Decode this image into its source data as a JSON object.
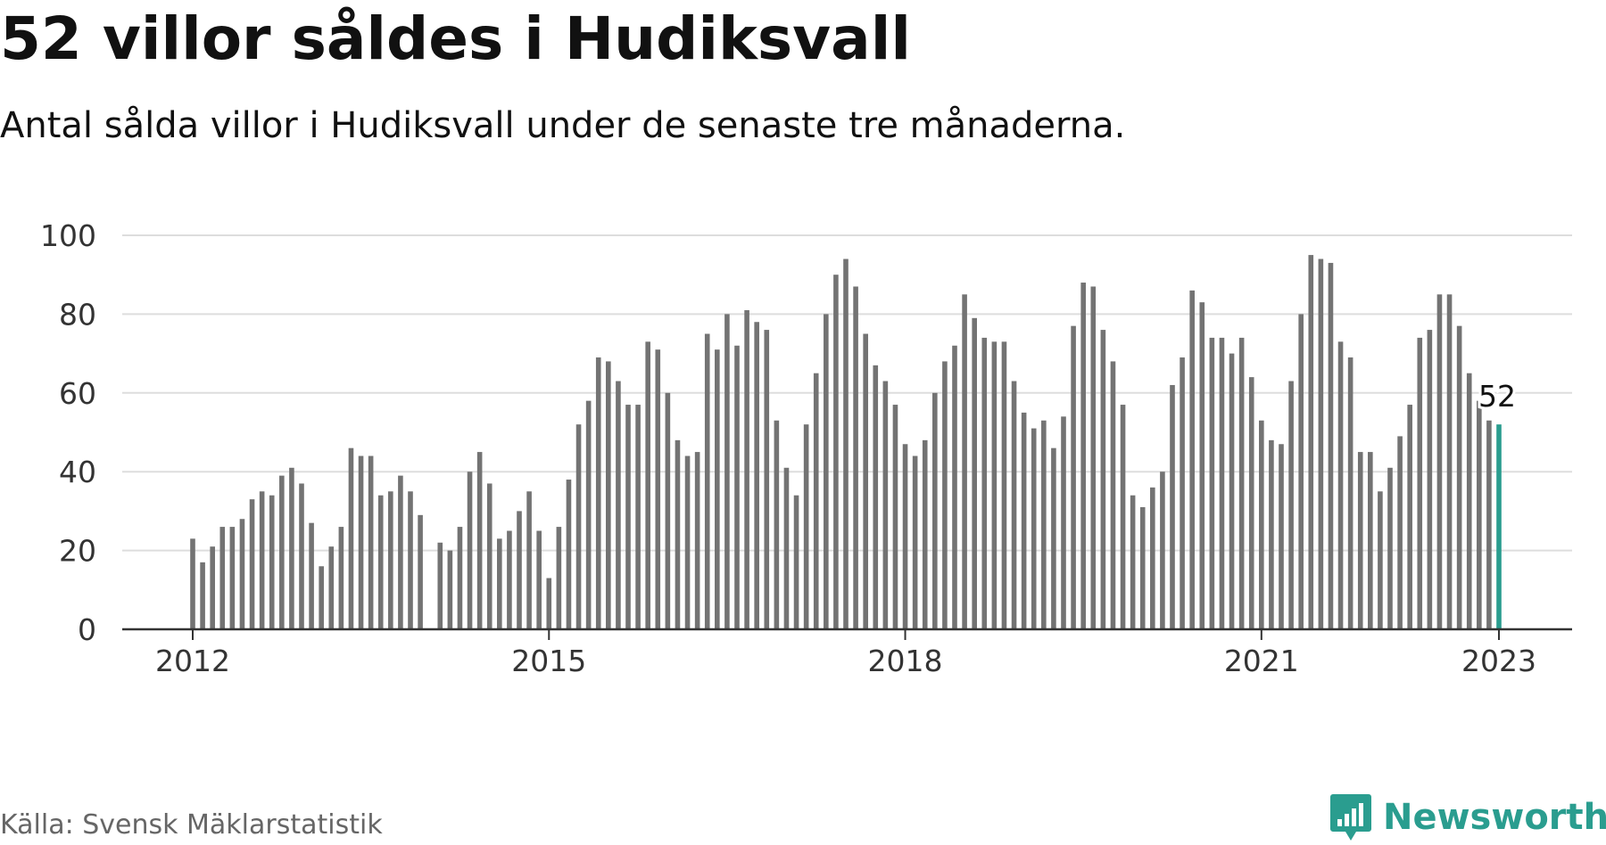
{
  "header": {
    "title": "52 villor såldes i Hudiksvall",
    "subtitle": "Antal sålda villor i Hudiksvall under de senaste tre månaderna."
  },
  "footer": {
    "source": "Källa: Svensk Mäklarstatistik",
    "brand": "Newsworthy"
  },
  "colors": {
    "bar": "#737373",
    "highlight": "#2a9d8f",
    "grid": "#dddddd",
    "axis": "#333333",
    "brand": "#2a9d8f"
  },
  "icons": {
    "brand_logo": "bar-chart-speech-bubble-icon"
  },
  "chart_data": {
    "type": "bar",
    "title": "52 villor såldes i Hudiksvall",
    "subtitle": "Antal sålda villor i Hudiksvall under de senaste tre månaderna.",
    "x_ticks": [
      "2012",
      "2015",
      "2018",
      "2021",
      "2023"
    ],
    "y_ticks": [
      0,
      20,
      40,
      60,
      80,
      100
    ],
    "ylim": [
      0,
      100
    ],
    "xlim": [
      "2011-07",
      "2023-07"
    ],
    "grid": true,
    "x": [
      "2012-01",
      "2012-02",
      "2012-03",
      "2012-04",
      "2012-05",
      "2012-06",
      "2012-07",
      "2012-08",
      "2012-09",
      "2012-10",
      "2012-11",
      "2012-12",
      "2013-01",
      "2013-02",
      "2013-03",
      "2013-04",
      "2013-05",
      "2013-06",
      "2013-07",
      "2013-08",
      "2013-09",
      "2013-10",
      "2013-11",
      "2013-12",
      "2014-01",
      "2014-02",
      "2014-03",
      "2014-04",
      "2014-05",
      "2014-06",
      "2014-07",
      "2014-08",
      "2014-09",
      "2014-10",
      "2014-11",
      "2014-12",
      "2015-01",
      "2015-02",
      "2015-03",
      "2015-04",
      "2015-05",
      "2015-06",
      "2015-07",
      "2015-08",
      "2015-09",
      "2015-10",
      "2015-11",
      "2015-12",
      "2016-01",
      "2016-02",
      "2016-03",
      "2016-04",
      "2016-05",
      "2016-06",
      "2016-07",
      "2016-08",
      "2016-09",
      "2016-10",
      "2016-11",
      "2016-12",
      "2017-01",
      "2017-02",
      "2017-03",
      "2017-04",
      "2017-05",
      "2017-06",
      "2017-07",
      "2017-08",
      "2017-09",
      "2017-10",
      "2017-11",
      "2017-12",
      "2018-01",
      "2018-02",
      "2018-03",
      "2018-04",
      "2018-05",
      "2018-06",
      "2018-07",
      "2018-08",
      "2018-09",
      "2018-10",
      "2018-11",
      "2018-12",
      "2019-01",
      "2019-02",
      "2019-03",
      "2019-04",
      "2019-05",
      "2019-06",
      "2019-07",
      "2019-08",
      "2019-09",
      "2019-10",
      "2019-11",
      "2019-12",
      "2020-01",
      "2020-02",
      "2020-03",
      "2020-04",
      "2020-05",
      "2020-06",
      "2020-07",
      "2020-08",
      "2020-09",
      "2020-10",
      "2020-11",
      "2020-12",
      "2021-01",
      "2021-02",
      "2021-03",
      "2021-04",
      "2021-05",
      "2021-06",
      "2021-07",
      "2021-08",
      "2021-09",
      "2021-10",
      "2021-11",
      "2021-12",
      "2022-01",
      "2022-02",
      "2022-03",
      "2022-04",
      "2022-05",
      "2022-06",
      "2022-07",
      "2022-08",
      "2022-09",
      "2022-10",
      "2022-11",
      "2022-12",
      "2023-01"
    ],
    "values": [
      23,
      17,
      21,
      26,
      26,
      28,
      33,
      35,
      34,
      39,
      41,
      37,
      27,
      16,
      21,
      26,
      46,
      44,
      44,
      34,
      35,
      39,
      35,
      29,
      null,
      22,
      20,
      26,
      40,
      45,
      37,
      23,
      25,
      30,
      35,
      25,
      13,
      26,
      38,
      52,
      58,
      69,
      68,
      63,
      57,
      57,
      73,
      71,
      60,
      48,
      44,
      45,
      75,
      71,
      80,
      72,
      81,
      78,
      76,
      53,
      41,
      34,
      52,
      65,
      80,
      90,
      94,
      87,
      75,
      67,
      63,
      57,
      47,
      44,
      48,
      60,
      68,
      72,
      85,
      79,
      74,
      73,
      73,
      63,
      55,
      51,
      53,
      46,
      54,
      77,
      88,
      87,
      76,
      68,
      57,
      34,
      31,
      36,
      40,
      62,
      69,
      86,
      83,
      74,
      74,
      70,
      74,
      64,
      53,
      48,
      47,
      63,
      80,
      95,
      94,
      93,
      73,
      69,
      45,
      45,
      35,
      41,
      49,
      57,
      74,
      76,
      85,
      85,
      77,
      65,
      58,
      53,
      52
    ],
    "highlight_label": "52"
  }
}
